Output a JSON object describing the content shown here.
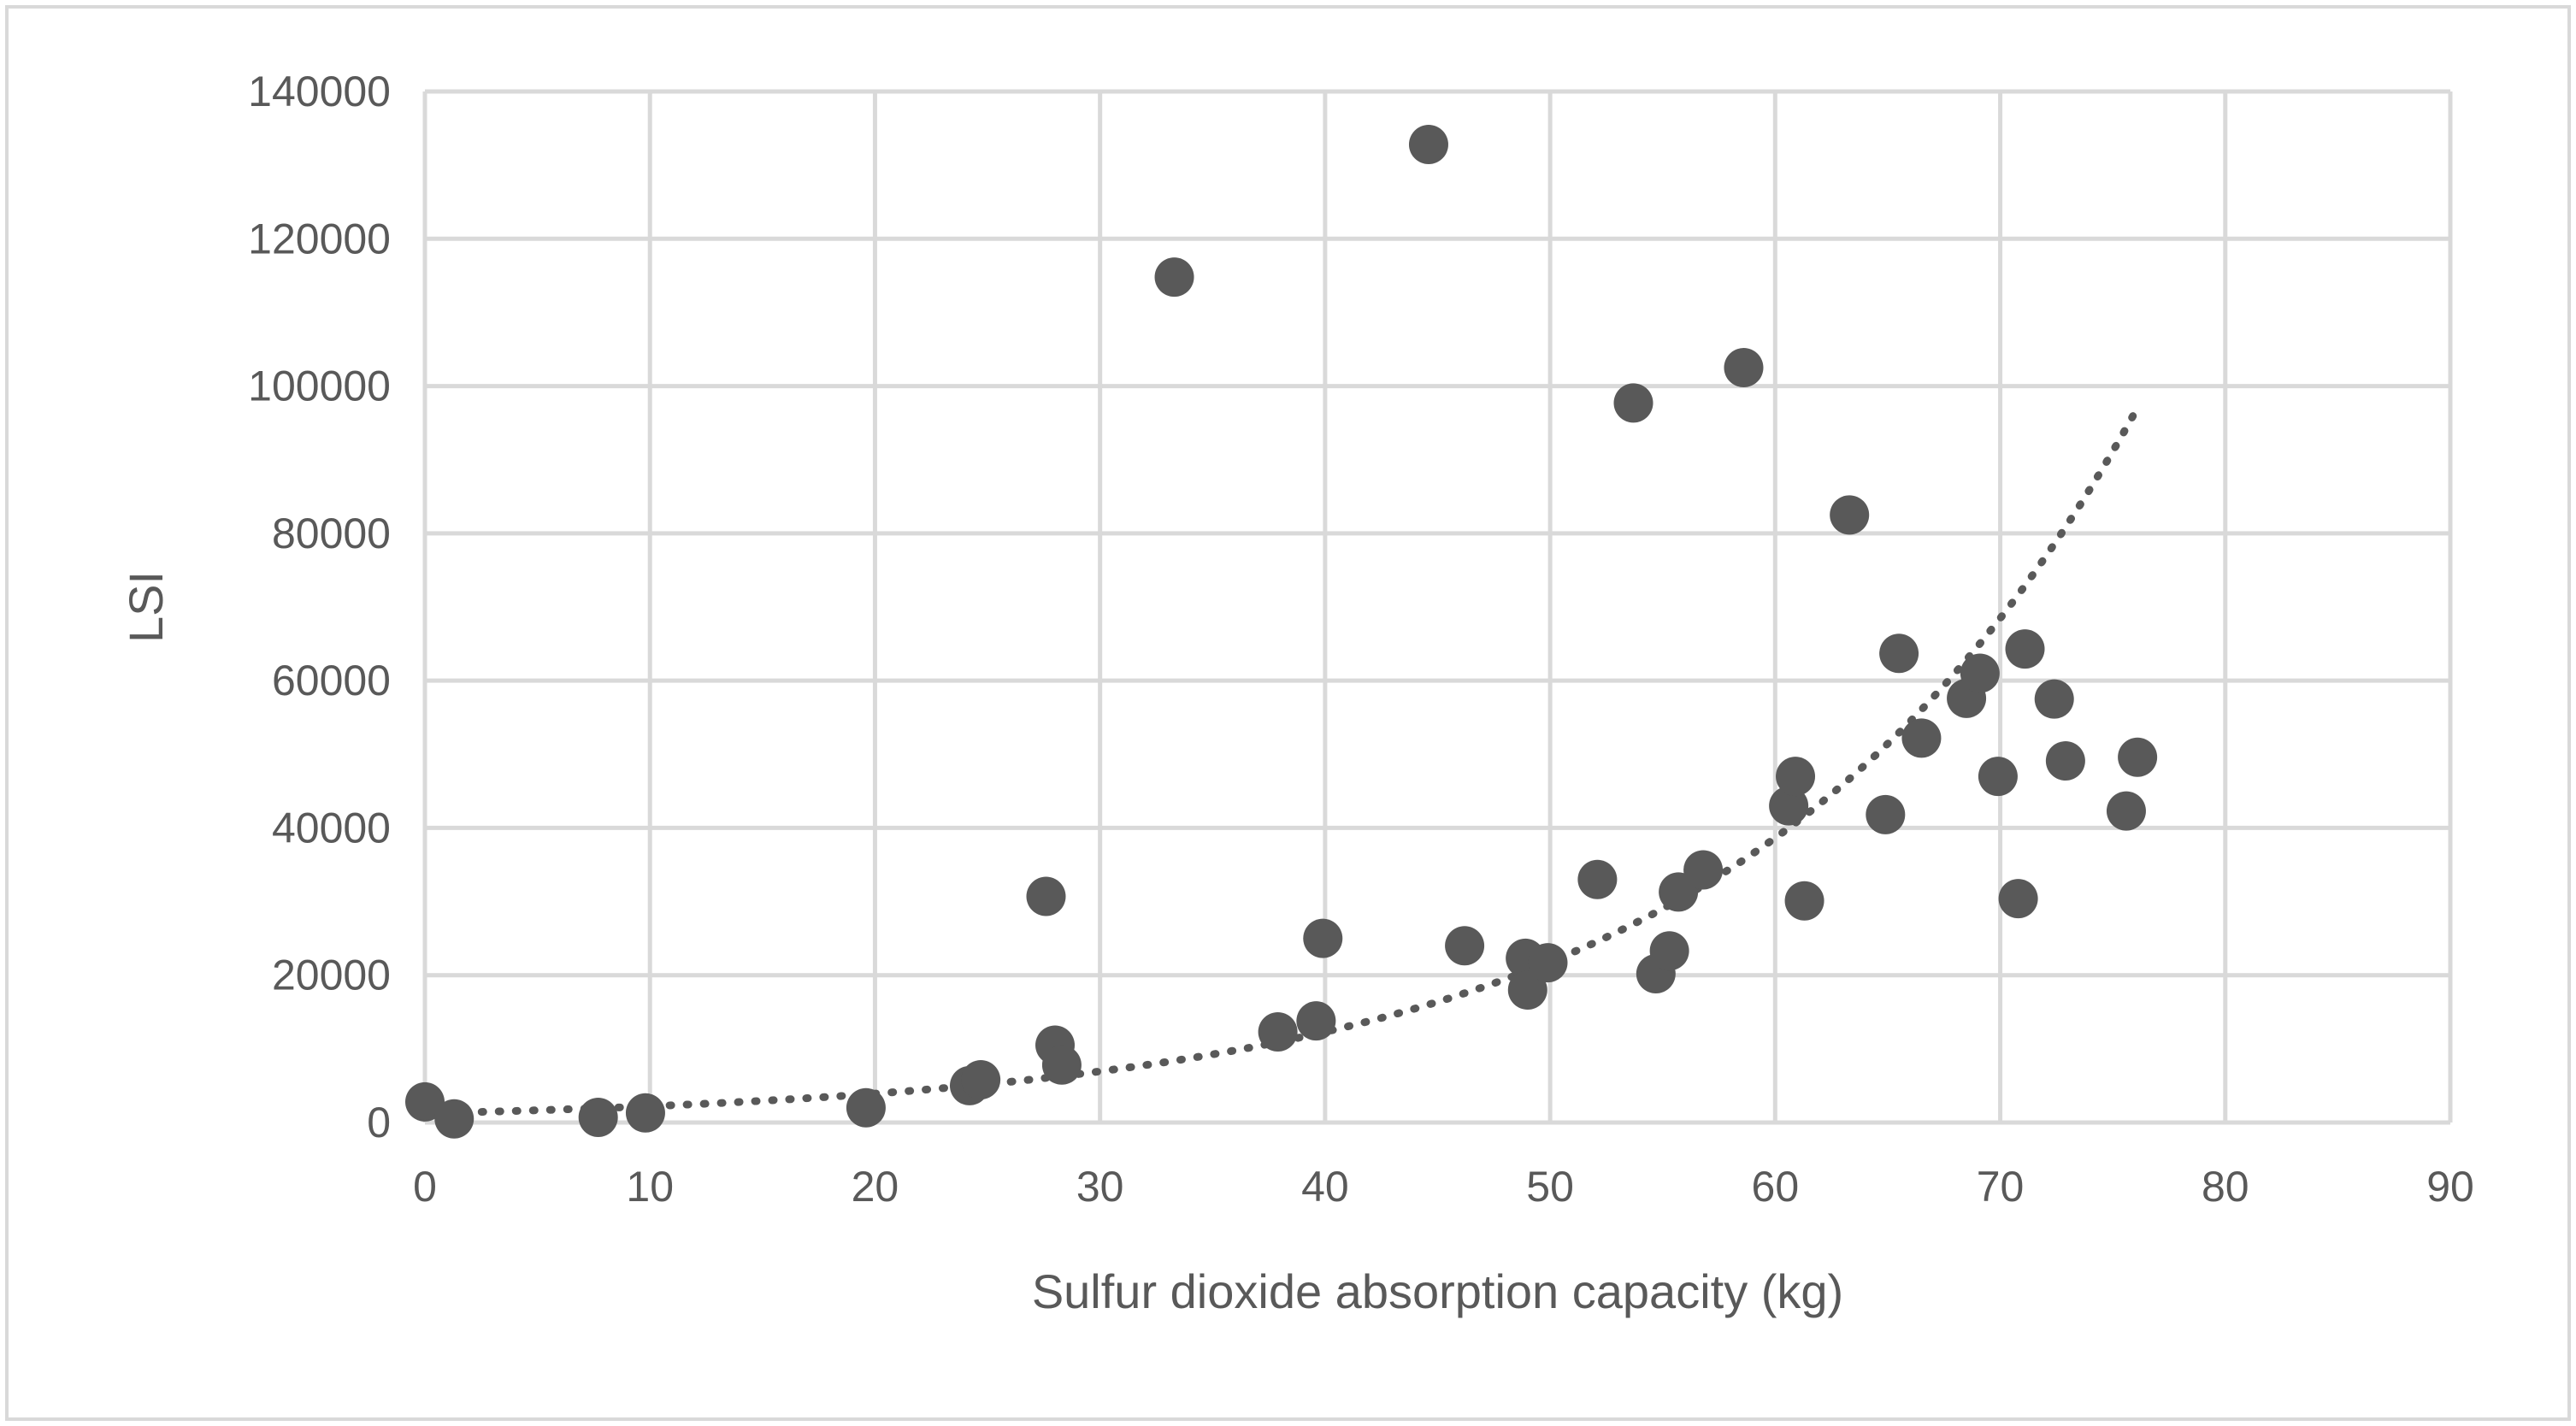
{
  "chart_data": {
    "type": "scatter",
    "title": "",
    "xlabel": "Sulfur dioxide absorption capacity (kg)",
    "ylabel": "LSI",
    "xlim": [
      0,
      90
    ],
    "ylim": [
      0,
      140000
    ],
    "xticks": [
      0,
      10,
      20,
      30,
      40,
      50,
      60,
      70,
      80,
      90
    ],
    "yticks": [
      0,
      20000,
      40000,
      60000,
      80000,
      100000,
      120000,
      140000
    ],
    "x_tick_labels": [
      "0",
      "10",
      "20",
      "30",
      "40",
      "50",
      "60",
      "70",
      "80",
      "90"
    ],
    "y_tick_labels": [
      "0",
      "20000",
      "40000",
      "60000",
      "80000",
      "100000",
      "120000",
      "140000"
    ],
    "grid": true,
    "legend": "none",
    "colors": {
      "point": "#595959",
      "grid": "#d9d9d9",
      "text": "#595959",
      "trendline": "#595959"
    },
    "series": [
      {
        "name": "LSI",
        "points": [
          [
            0.0,
            2800
          ],
          [
            1.3,
            500
          ],
          [
            7.7,
            700
          ],
          [
            9.8,
            1300
          ],
          [
            19.6,
            2000
          ],
          [
            24.2,
            5000
          ],
          [
            24.7,
            5800
          ],
          [
            27.6,
            30700
          ],
          [
            28.0,
            10500
          ],
          [
            28.3,
            7800
          ],
          [
            33.3,
            114800
          ],
          [
            37.9,
            12300
          ],
          [
            39.6,
            13800
          ],
          [
            39.9,
            25000
          ],
          [
            44.6,
            132800
          ],
          [
            46.2,
            24000
          ],
          [
            48.9,
            22300
          ],
          [
            49.0,
            18000
          ],
          [
            49.9,
            21700
          ],
          [
            52.1,
            33000
          ],
          [
            53.7,
            97700
          ],
          [
            54.7,
            20200
          ],
          [
            55.3,
            23300
          ],
          [
            55.7,
            31300
          ],
          [
            56.8,
            34300
          ],
          [
            58.6,
            102500
          ],
          [
            60.6,
            43000
          ],
          [
            60.9,
            47000
          ],
          [
            61.3,
            30100
          ],
          [
            63.3,
            82500
          ],
          [
            64.9,
            41800
          ],
          [
            65.5,
            63700
          ],
          [
            66.5,
            52200
          ],
          [
            68.5,
            57600
          ],
          [
            69.1,
            61000
          ],
          [
            69.9,
            47000
          ],
          [
            70.8,
            30400
          ],
          [
            71.1,
            64300
          ],
          [
            72.4,
            57500
          ],
          [
            72.9,
            49100
          ],
          [
            75.6,
            42300
          ],
          [
            76.1,
            49600
          ]
        ]
      }
    ],
    "trendline": {
      "type": "exponential",
      "style": "dotted",
      "x_range": [
        1,
        76
      ],
      "a": 1249,
      "b": 0.0572
    }
  }
}
